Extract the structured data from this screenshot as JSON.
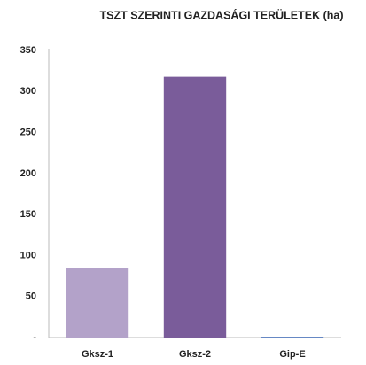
{
  "chart_data": {
    "type": "bar",
    "title": "TSZT SZERINTI GAZDASÁGI TERÜLETEK (ha)",
    "categories": [
      "Gksz-1",
      "Gksz-2",
      "Gip-E"
    ],
    "values": [
      85,
      318,
      1
    ],
    "colors": [
      "#b3a2c9",
      "#7a5c9a",
      "#5a7fc0"
    ],
    "ylim": [
      0,
      350
    ],
    "yticks": [
      {
        "value": 0,
        "label": "-"
      },
      50,
      100,
      150,
      200,
      250,
      300,
      350
    ],
    "grid": false
  }
}
